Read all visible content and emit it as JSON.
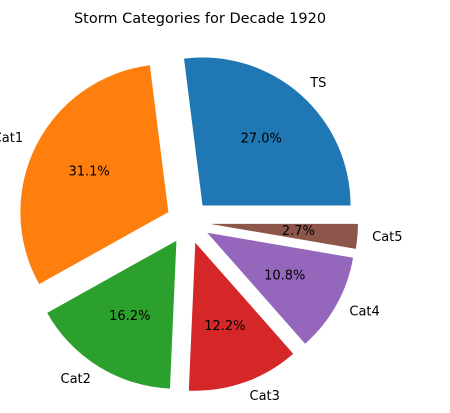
{
  "chart_data": {
    "type": "pie",
    "title": "Storm Categories for Decade 1920",
    "labels": [
      "TS",
      "Cat1",
      "Cat2",
      "Cat3",
      "Cat4",
      "Cat5"
    ],
    "percentages": [
      "27.0%",
      "31.1%",
      "16.2%",
      "12.2%",
      "10.8%",
      "2.7%"
    ],
    "values": [
      27.0,
      31.1,
      16.2,
      12.2,
      10.8,
      2.7
    ],
    "colors": [
      "#1f77b4",
      "#ff7f0e",
      "#2ca02c",
      "#d62728",
      "#9467bd",
      "#8c564b"
    ],
    "start_angle": 0,
    "direction": "counterclockwise",
    "exploded": true
  }
}
